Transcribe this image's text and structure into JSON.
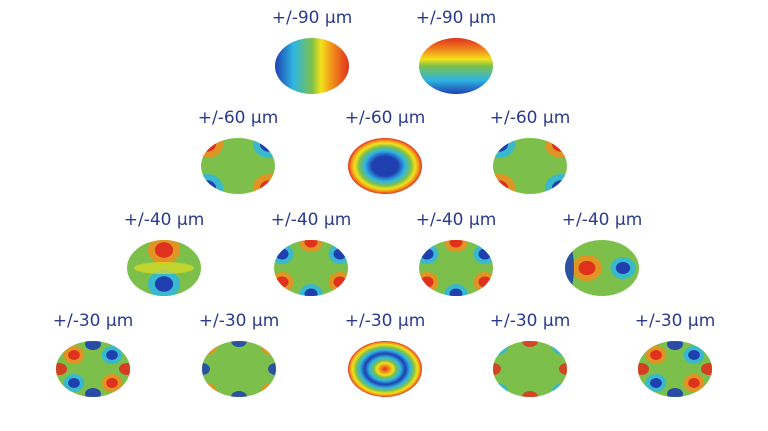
{
  "modes": [
    {
      "label": "+/-90 µm",
      "pattern": "tilt-x"
    },
    {
      "label": "+/-90 µm",
      "pattern": "tilt-y"
    },
    {
      "label": "+/-60 µm",
      "pattern": "astig-45"
    },
    {
      "label": "+/-60 µm",
      "pattern": "defocus"
    },
    {
      "label": "+/-60 µm",
      "pattern": "astig-0"
    },
    {
      "label": "+/-40 µm",
      "pattern": "coma-y"
    },
    {
      "label": "+/-40 µm",
      "pattern": "trefoil-a"
    },
    {
      "label": "+/-40 µm",
      "pattern": "trefoil-b"
    },
    {
      "label": "+/-40 µm",
      "pattern": "coma-x"
    },
    {
      "label": "+/-30 µm",
      "pattern": "quadrafoil-a"
    },
    {
      "label": "+/-30 µm",
      "pattern": "secondary-astig"
    },
    {
      "label": "+/-30 µm",
      "pattern": "spherical"
    },
    {
      "label": "+/-30 µm",
      "pattern": "secondary-astig-b"
    },
    {
      "label": "+/-30 µm",
      "pattern": "quadrafoil-b"
    }
  ],
  "colors": {
    "label": "#2a3b8f",
    "red": "#e0301e",
    "orange": "#f28c1c",
    "yellow": "#f2e21a",
    "green": "#7cc04b",
    "cyan": "#2fb6e3",
    "blue": "#1f3fb0"
  }
}
